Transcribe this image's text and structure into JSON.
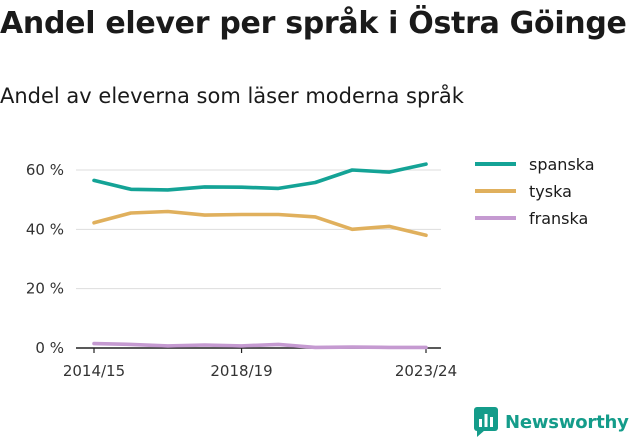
{
  "title": "Andel elever per språk i Östra Göinge",
  "subtitle": "Andel av eleverna som läser moderna språk",
  "brand": {
    "name": "Newsworthy",
    "logo_icon": "bar-chart-speech-bubble-icon",
    "color": "#149c8a"
  },
  "chart_data": {
    "type": "line",
    "x": [
      "2014/15",
      "2015/16",
      "2016/17",
      "2017/18",
      "2018/19",
      "2019/20",
      "2020/21",
      "2021/22",
      "2022/23",
      "2023/24"
    ],
    "x_tick_labels": [
      "2014/15",
      "2018/19",
      "2023/24"
    ],
    "y_ticks": [
      0,
      20,
      40,
      60
    ],
    "y_tick_labels": [
      "0 %",
      "20 %",
      "40 %",
      "60 %"
    ],
    "ylim": [
      0,
      65
    ],
    "grid": true,
    "legend_position": "right",
    "series": [
      {
        "name": "spanska",
        "color": "#14a396",
        "values": [
          56.5,
          53.5,
          53.3,
          54.3,
          54.2,
          53.8,
          55.8,
          60.0,
          59.3,
          62.0
        ]
      },
      {
        "name": "tyska",
        "color": "#e0b05d",
        "values": [
          42.2,
          45.5,
          46.0,
          44.8,
          45.0,
          45.0,
          44.2,
          40.0,
          41.0,
          38.0
        ]
      },
      {
        "name": "franska",
        "color": "#c59ad1",
        "values": [
          1.5,
          1.2,
          0.7,
          1.0,
          0.7,
          1.2,
          0.2,
          0.3,
          0.2,
          0.2
        ]
      }
    ]
  }
}
